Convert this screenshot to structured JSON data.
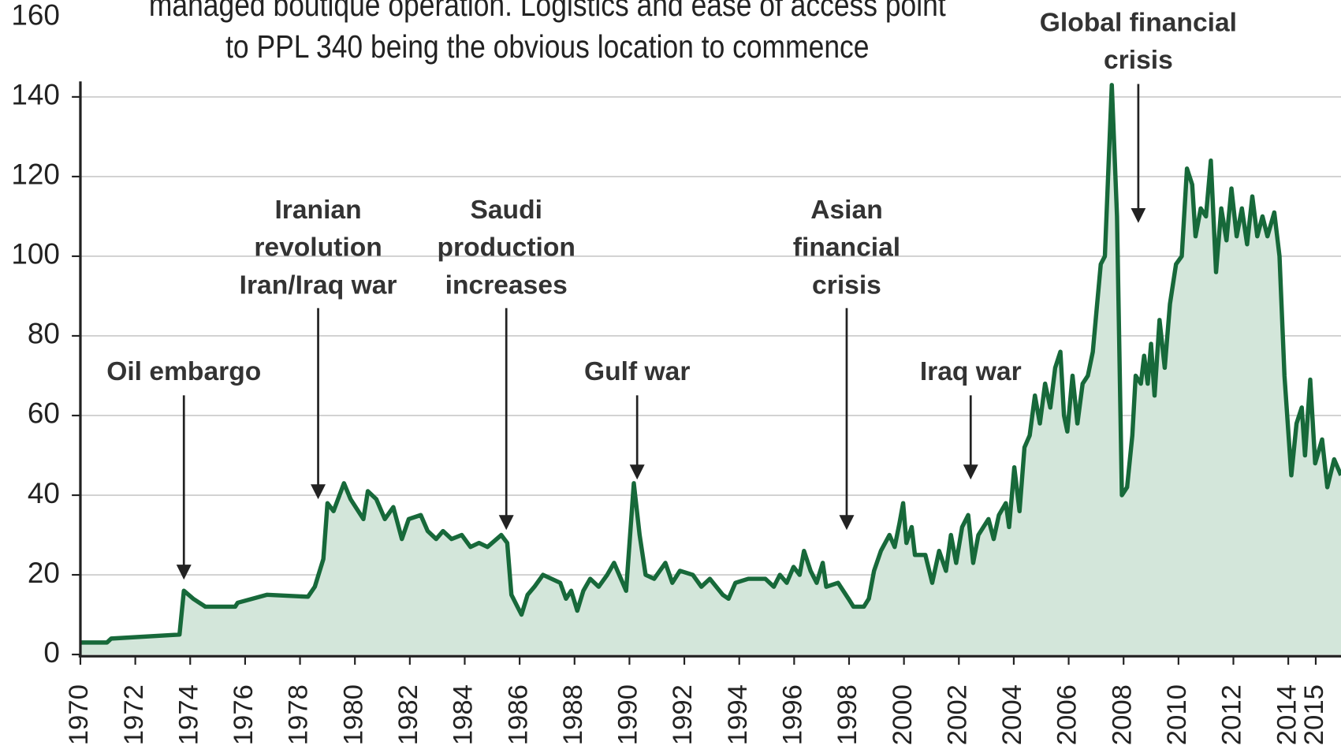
{
  "chart_data": {
    "type": "area",
    "title_lines": [
      "managed boutique operation. Logistics and ease of access point",
      "to PPL 340 being the obvious location to commence"
    ],
    "color": "#17693a",
    "fill_color": "#d3e6da",
    "grid": true,
    "xlim": [
      1970,
      2015.92
    ],
    "ylim": [
      0,
      160
    ],
    "yticks": [
      0,
      20,
      40,
      60,
      80,
      100,
      120,
      140,
      160
    ],
    "xticks": [
      1970,
      1972,
      1974,
      1976,
      1978,
      1980,
      1982,
      1984,
      1986,
      1988,
      1990,
      1992,
      1994,
      1996,
      1998,
      2000,
      2002,
      2004,
      2006,
      2008,
      2010,
      2012,
      2014,
      2015
    ],
    "x": [
      1970.0,
      1970.97,
      1971.12,
      1973.61,
      1973.77,
      1974.11,
      1974.55,
      1975.64,
      1975.73,
      1976.79,
      1978.29,
      1978.54,
      1978.85,
      1979.0,
      1979.22,
      1979.6,
      1979.84,
      1980.31,
      1980.47,
      1980.78,
      1981.09,
      1981.4,
      1981.71,
      1981.96,
      1982.4,
      1982.65,
      1982.96,
      1983.21,
      1983.52,
      1983.89,
      1984.21,
      1984.52,
      1984.83,
      1985.33,
      1985.55,
      1985.7,
      1985.92,
      1986.07,
      1986.29,
      1986.54,
      1986.85,
      1987.48,
      1987.69,
      1987.88,
      1988.1,
      1988.32,
      1988.57,
      1988.88,
      1989.19,
      1989.44,
      1989.88,
      1990.16,
      1990.37,
      1990.59,
      1990.9,
      1991.31,
      1991.56,
      1991.84,
      1992.31,
      1992.62,
      1992.93,
      1993.4,
      1993.61,
      1993.86,
      1994.33,
      1994.95,
      1995.26,
      1995.48,
      1995.73,
      1995.98,
      1996.2,
      1996.36,
      1996.6,
      1996.82,
      1997.04,
      1997.17,
      1997.6,
      1997.98,
      1998.16,
      1998.54,
      1998.72,
      1998.91,
      1999.16,
      1999.47,
      1999.66,
      1999.84,
      1999.97,
      2000.09,
      2000.28,
      2000.4,
      2000.78,
      2001.03,
      2001.28,
      2001.53,
      2001.71,
      2001.9,
      2002.12,
      2002.34,
      2002.52,
      2002.71,
      2003.08,
      2003.27,
      2003.46,
      2003.71,
      2003.83,
      2004.02,
      2004.21,
      2004.39,
      2004.58,
      2004.77,
      2004.95,
      2005.14,
      2005.33,
      2005.51,
      2005.7,
      2005.83,
      2005.95,
      2006.14,
      2006.32,
      2006.51,
      2006.7,
      2006.88,
      2007.01,
      2007.17,
      2007.32,
      2007.57,
      2007.76,
      2007.94,
      2008.13,
      2008.32,
      2008.44,
      2008.63,
      2008.75,
      2008.88,
      2009.0,
      2009.13,
      2009.31,
      2009.5,
      2009.69,
      2009.91,
      2010.12,
      2010.31,
      2010.5,
      2010.62,
      2010.81,
      2011.0,
      2011.18,
      2011.37,
      2011.56,
      2011.75,
      2011.93,
      2012.12,
      2012.31,
      2012.5,
      2012.69,
      2012.87,
      2013.06,
      2013.24,
      2013.49,
      2013.68,
      2013.86,
      2014.11,
      2014.3,
      2014.49,
      2014.61,
      2014.8,
      2014.98,
      2015.23,
      2015.42,
      2015.67,
      2015.92
    ],
    "values": [
      3,
      3,
      4,
      5,
      16,
      14,
      12,
      12,
      13,
      15,
      14.5,
      17,
      24,
      38,
      36,
      43,
      39,
      34,
      41,
      39,
      34,
      37,
      29,
      34,
      35,
      31,
      29,
      31,
      29,
      30,
      27,
      28,
      27,
      30,
      28,
      15,
      12,
      10,
      15,
      17,
      20,
      18,
      14,
      16,
      11,
      16,
      19,
      17,
      20,
      23,
      16,
      43,
      30,
      20,
      19,
      23,
      18,
      21,
      20,
      17,
      19,
      15,
      14,
      18,
      19,
      19,
      17,
      20,
      18,
      22,
      20,
      26,
      21,
      18,
      23,
      17,
      18,
      14,
      12,
      12,
      14,
      21,
      26,
      30,
      27,
      33,
      38,
      28,
      32,
      25,
      25,
      18,
      26,
      21,
      30,
      23,
      32,
      35,
      23,
      30,
      34,
      29,
      35,
      38,
      32,
      47,
      36,
      52,
      55,
      65,
      58,
      68,
      62,
      72,
      76,
      60,
      56,
      70,
      58,
      68,
      70,
      76,
      86,
      98,
      100,
      143,
      110,
      40,
      42,
      55,
      70,
      68,
      75,
      68,
      78,
      65,
      84,
      72,
      88,
      98,
      100,
      122,
      118,
      105,
      112,
      110,
      124,
      96,
      112,
      104,
      117,
      105,
      112,
      103,
      115,
      105,
      110,
      105,
      111,
      100,
      70,
      45,
      58,
      62,
      50,
      69,
      48,
      54,
      42,
      49,
      45
    ],
    "annotations": [
      {
        "lines": [
          "Oil embargo"
        ]
      },
      {
        "lines": [
          "Iranian",
          "revolution",
          "Iran/Iraq war"
        ]
      },
      {
        "lines": [
          "Saudi",
          "production",
          "increases"
        ]
      },
      {
        "lines": [
          "Gulf war"
        ]
      },
      {
        "lines": [
          "Asian",
          "financial",
          "crisis"
        ]
      },
      {
        "lines": [
          "Iraq war"
        ]
      },
      {
        "lines": [
          "Global financial",
          "crisis"
        ]
      }
    ]
  }
}
